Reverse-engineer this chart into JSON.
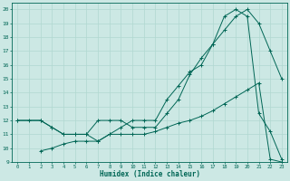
{
  "xlabel": "Humidex (Indice chaleur)",
  "bg_color": "#cce8e4",
  "grid_color": "#b0d8d0",
  "line_color": "#006655",
  "xlim": [
    -0.5,
    23.5
  ],
  "ylim": [
    9,
    20.5
  ],
  "xticks": [
    0,
    1,
    2,
    3,
    4,
    5,
    6,
    7,
    8,
    9,
    10,
    11,
    12,
    13,
    14,
    15,
    16,
    17,
    18,
    19,
    20,
    21,
    22,
    23
  ],
  "yticks": [
    9,
    10,
    11,
    12,
    13,
    14,
    15,
    16,
    17,
    18,
    19,
    20
  ],
  "line1_x": [
    0,
    1,
    2,
    3,
    4,
    5,
    6,
    7,
    8,
    9,
    10,
    11,
    12,
    13,
    14,
    15,
    16,
    17,
    18,
    19,
    20,
    21,
    22,
    23
  ],
  "line1_y": [
    12,
    12,
    12,
    11.5,
    11,
    11,
    11,
    10.5,
    11,
    11.5,
    12,
    12,
    12,
    13.5,
    14.5,
    15.5,
    16,
    17.5,
    18.5,
    19.5,
    20,
    19,
    17,
    15
  ],
  "line2_x": [
    0,
    2,
    3,
    4,
    5,
    6,
    7,
    8,
    9,
    10,
    11,
    12,
    13,
    14,
    15,
    16,
    17,
    18,
    19,
    20,
    21,
    22,
    23
  ],
  "line2_y": [
    12,
    12,
    11.5,
    11,
    11,
    11,
    12,
    12,
    12,
    11.5,
    11.5,
    11.5,
    12.5,
    13.5,
    15.3,
    16.5,
    17.5,
    19.5,
    20,
    19.5,
    12.5,
    11.2,
    9.2
  ],
  "line3_x": [
    2,
    3,
    4,
    5,
    6,
    7,
    8,
    9,
    10,
    11,
    12,
    13,
    14,
    15,
    16,
    17,
    18,
    19,
    20,
    21,
    22,
    23
  ],
  "line3_y": [
    9.8,
    10.0,
    10.3,
    10.5,
    10.5,
    10.5,
    11,
    11,
    11,
    11,
    11.2,
    11.5,
    11.8,
    12,
    12.3,
    12.7,
    13.2,
    13.7,
    14.2,
    14.7,
    9.2,
    9.0
  ]
}
